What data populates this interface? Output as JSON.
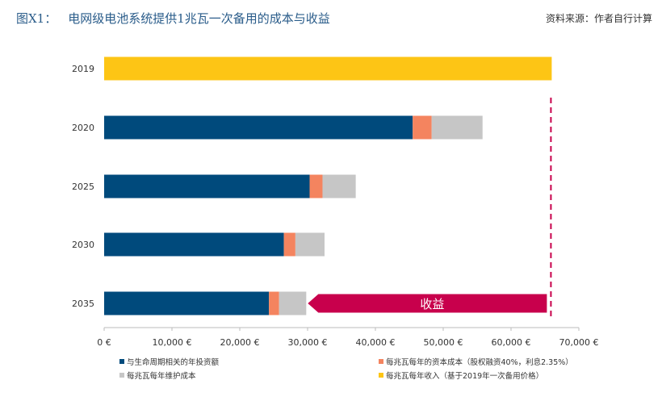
{
  "title": {
    "figure": "图X1：",
    "text": "电网级电池系统提供1兆瓦一次备用的成本与收益"
  },
  "source": "资料来源：作者自行计算",
  "colors": {
    "investment": "#004a7c",
    "capital": "#f4845f",
    "maintenance": "#c6c6c6",
    "revenue": "#fdc515",
    "benefit": "#c8004c"
  },
  "chart_data": {
    "type": "bar",
    "orientation": "horizontal",
    "stacked": true,
    "categories": [
      "2019",
      "2020",
      "2025",
      "2030",
      "2035"
    ],
    "series": [
      {
        "name": "与生命周期相关的年投资额",
        "key": "investment",
        "values": [
          0,
          45500,
          30300,
          26500,
          24300
        ]
      },
      {
        "name": "每兆瓦每年的资本成本（股权融资40%，利息2.35%）",
        "key": "capital",
        "values": [
          0,
          2800,
          1900,
          1700,
          1500
        ]
      },
      {
        "name": "每兆瓦每年维护成本",
        "key": "maintenance",
        "values": [
          0,
          7500,
          4900,
          4300,
          4000
        ]
      },
      {
        "name": "每兆瓦每年收入（基于2019年一次备用价格）",
        "key": "revenue",
        "values": [
          66000,
          0,
          0,
          0,
          0
        ]
      }
    ],
    "x_ticks": [
      "0 €",
      "10,000 €",
      "20,000 €",
      "30,000 €",
      "40,000 €",
      "50,000 €",
      "60,000 €",
      "70,000 €"
    ],
    "xlim": [
      0,
      70000
    ],
    "annotation": {
      "label": "收益",
      "category": "2035",
      "from": 29800,
      "to": 66000
    },
    "reference_line": {
      "value": 66000
    },
    "grid": false,
    "legend_position": "bottom"
  }
}
